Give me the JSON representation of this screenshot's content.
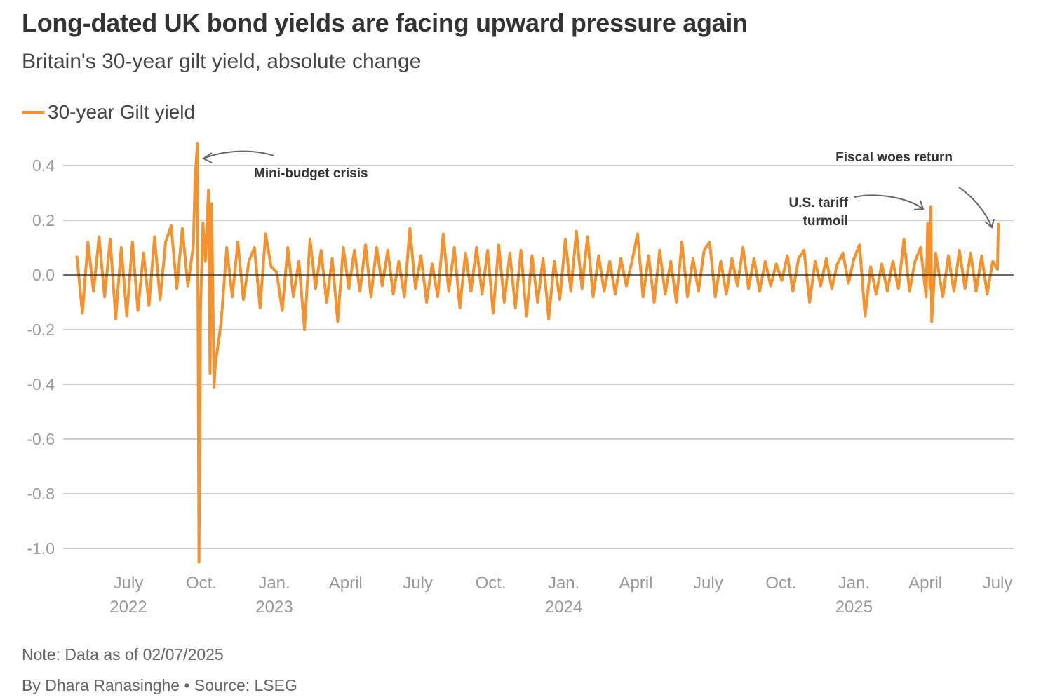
{
  "header": {
    "title": "Long-dated UK bond yields are facing upward pressure again",
    "subtitle": "Britain's 30-year gilt yield, absolute change"
  },
  "footer": {
    "note": "Note: Data as of 02/07/2025",
    "byline": "By Dhara Ranasinghe  • Source: LSEG"
  },
  "chart_data": {
    "type": "line",
    "title": "Long-dated UK bond yields are facing upward pressure again",
    "subtitle": "Britain's 30-year gilt yield, absolute change",
    "ylim": [
      -1.05,
      0.48
    ],
    "yticks": [
      0.4,
      0.2,
      0.0,
      -0.2,
      -0.4,
      -0.6,
      -0.8,
      -1.0
    ],
    "ytick_labels": [
      "0.4",
      "0.2",
      "0.0",
      "-0.2",
      "-0.4",
      "-0.6",
      "-0.8",
      "-1.0"
    ],
    "xlim": [
      "2022-04-27",
      "2025-07-02"
    ],
    "xticks": [
      {
        "date": "2022-07-01",
        "label": "July",
        "year": "2022"
      },
      {
        "date": "2022-10-01",
        "label": "Oct.",
        "year": ""
      },
      {
        "date": "2023-01-01",
        "label": "Jan.",
        "year": "2023"
      },
      {
        "date": "2023-04-01",
        "label": "April",
        "year": ""
      },
      {
        "date": "2023-07-01",
        "label": "July",
        "year": ""
      },
      {
        "date": "2023-10-01",
        "label": "Oct.",
        "year": ""
      },
      {
        "date": "2024-01-01",
        "label": "Jan.",
        "year": "2024"
      },
      {
        "date": "2024-04-01",
        "label": "April",
        "year": ""
      },
      {
        "date": "2024-07-01",
        "label": "July",
        "year": ""
      },
      {
        "date": "2024-10-01",
        "label": "Oct.",
        "year": ""
      },
      {
        "date": "2025-01-01",
        "label": "Jan.",
        "year": "2025"
      },
      {
        "date": "2025-04-01",
        "label": "April",
        "year": ""
      },
      {
        "date": "2025-07-01",
        "label": "July",
        "year": ""
      }
    ],
    "grid": true,
    "legend_placement": "top-left",
    "colors": {
      "series": "#f5922e",
      "grid": "#cccccc",
      "zero_line": "#333333",
      "annotation": "#333333",
      "arrow": "#666666"
    },
    "annotations": [
      {
        "text": "Mini-budget crisis",
        "date": "2022-09-26",
        "value": 0.48
      },
      {
        "text": "U.S. tariff",
        "text2": "turmoil",
        "date": "2025-04-08",
        "value": 0.25
      },
      {
        "text": "Fiscal woes return",
        "date": "2025-07-02",
        "value": 0.19
      }
    ],
    "series": [
      {
        "name": "30-year Gilt yield",
        "data": [
          [
            "2022-04-27",
            0.07
          ],
          [
            "2022-05-04",
            -0.14
          ],
          [
            "2022-05-11",
            0.12
          ],
          [
            "2022-05-18",
            -0.06
          ],
          [
            "2022-05-25",
            0.14
          ],
          [
            "2022-06-01",
            -0.08
          ],
          [
            "2022-06-08",
            0.13
          ],
          [
            "2022-06-15",
            -0.16
          ],
          [
            "2022-06-22",
            0.1
          ],
          [
            "2022-06-29",
            -0.15
          ],
          [
            "2022-07-06",
            0.12
          ],
          [
            "2022-07-13",
            -0.13
          ],
          [
            "2022-07-20",
            0.08
          ],
          [
            "2022-07-27",
            -0.11
          ],
          [
            "2022-08-03",
            0.14
          ],
          [
            "2022-08-10",
            -0.09
          ],
          [
            "2022-08-17",
            0.12
          ],
          [
            "2022-08-24",
            0.18
          ],
          [
            "2022-08-31",
            -0.05
          ],
          [
            "2022-09-07",
            0.17
          ],
          [
            "2022-09-14",
            -0.04
          ],
          [
            "2022-09-21",
            0.11
          ],
          [
            "2022-09-23",
            0.35
          ],
          [
            "2022-09-26",
            0.48
          ],
          [
            "2022-09-28",
            -1.05
          ],
          [
            "2022-09-30",
            -0.12
          ],
          [
            "2022-10-03",
            0.19
          ],
          [
            "2022-10-06",
            0.05
          ],
          [
            "2022-10-10",
            0.31
          ],
          [
            "2022-10-12",
            -0.36
          ],
          [
            "2022-10-14",
            0.26
          ],
          [
            "2022-10-17",
            -0.41
          ],
          [
            "2022-10-19",
            -0.31
          ],
          [
            "2022-10-21",
            -0.28
          ],
          [
            "2022-10-26",
            -0.17
          ],
          [
            "2022-11-02",
            0.1
          ],
          [
            "2022-11-09",
            -0.08
          ],
          [
            "2022-11-16",
            0.12
          ],
          [
            "2022-11-23",
            -0.09
          ],
          [
            "2022-11-30",
            0.05
          ],
          [
            "2022-12-07",
            0.1
          ],
          [
            "2022-12-14",
            -0.12
          ],
          [
            "2022-12-21",
            0.15
          ],
          [
            "2022-12-28",
            0.03
          ],
          [
            "2023-01-04",
            0.01
          ],
          [
            "2023-01-11",
            -0.13
          ],
          [
            "2023-01-18",
            0.1
          ],
          [
            "2023-01-25",
            -0.08
          ],
          [
            "2023-02-01",
            0.05
          ],
          [
            "2023-02-08",
            -0.2
          ],
          [
            "2023-02-15",
            0.13
          ],
          [
            "2023-02-22",
            -0.05
          ],
          [
            "2023-03-01",
            0.09
          ],
          [
            "2023-03-08",
            -0.1
          ],
          [
            "2023-03-15",
            0.06
          ],
          [
            "2023-03-22",
            -0.17
          ],
          [
            "2023-03-29",
            0.1
          ],
          [
            "2023-04-05",
            -0.05
          ],
          [
            "2023-04-12",
            0.09
          ],
          [
            "2023-04-19",
            -0.06
          ],
          [
            "2023-04-26",
            0.11
          ],
          [
            "2023-05-03",
            -0.08
          ],
          [
            "2023-05-10",
            0.1
          ],
          [
            "2023-05-17",
            -0.04
          ],
          [
            "2023-05-24",
            0.09
          ],
          [
            "2023-05-31",
            -0.07
          ],
          [
            "2023-06-07",
            0.05
          ],
          [
            "2023-06-14",
            -0.08
          ],
          [
            "2023-06-21",
            0.17
          ],
          [
            "2023-06-28",
            -0.05
          ],
          [
            "2023-07-05",
            0.07
          ],
          [
            "2023-07-12",
            -0.1
          ],
          [
            "2023-07-19",
            0.04
          ],
          [
            "2023-07-26",
            -0.08
          ],
          [
            "2023-08-02",
            0.15
          ],
          [
            "2023-08-09",
            -0.06
          ],
          [
            "2023-08-16",
            0.1
          ],
          [
            "2023-08-23",
            -0.12
          ],
          [
            "2023-08-30",
            0.08
          ],
          [
            "2023-09-06",
            -0.06
          ],
          [
            "2023-09-13",
            0.1
          ],
          [
            "2023-09-20",
            -0.07
          ],
          [
            "2023-09-27",
            0.09
          ],
          [
            "2023-10-04",
            -0.14
          ],
          [
            "2023-10-11",
            0.11
          ],
          [
            "2023-10-18",
            -0.1
          ],
          [
            "2023-10-25",
            0.08
          ],
          [
            "2023-11-01",
            -0.12
          ],
          [
            "2023-11-08",
            0.09
          ],
          [
            "2023-11-15",
            -0.15
          ],
          [
            "2023-11-22",
            0.07
          ],
          [
            "2023-11-29",
            -0.1
          ],
          [
            "2023-12-06",
            0.06
          ],
          [
            "2023-12-13",
            -0.16
          ],
          [
            "2023-12-20",
            0.05
          ],
          [
            "2023-12-27",
            -0.09
          ],
          [
            "2024-01-03",
            0.13
          ],
          [
            "2024-01-10",
            -0.06
          ],
          [
            "2024-01-17",
            0.16
          ],
          [
            "2024-01-24",
            -0.05
          ],
          [
            "2024-01-31",
            0.14
          ],
          [
            "2024-02-07",
            -0.08
          ],
          [
            "2024-02-14",
            0.07
          ],
          [
            "2024-02-21",
            -0.06
          ],
          [
            "2024-02-28",
            0.05
          ],
          [
            "2024-03-06",
            -0.07
          ],
          [
            "2024-03-13",
            0.06
          ],
          [
            "2024-03-20",
            -0.04
          ],
          [
            "2024-03-27",
            0.05
          ],
          [
            "2024-04-03",
            0.15
          ],
          [
            "2024-04-10",
            -0.08
          ],
          [
            "2024-04-17",
            0.07
          ],
          [
            "2024-04-24",
            -0.1
          ],
          [
            "2024-05-01",
            0.09
          ],
          [
            "2024-05-08",
            -0.07
          ],
          [
            "2024-05-15",
            0.05
          ],
          [
            "2024-05-22",
            -0.1
          ],
          [
            "2024-05-29",
            0.12
          ],
          [
            "2024-06-05",
            -0.08
          ],
          [
            "2024-06-12",
            0.06
          ],
          [
            "2024-06-19",
            -0.06
          ],
          [
            "2024-06-26",
            0.09
          ],
          [
            "2024-07-03",
            0.12
          ],
          [
            "2024-07-10",
            -0.08
          ],
          [
            "2024-07-17",
            0.05
          ],
          [
            "2024-07-24",
            -0.07
          ],
          [
            "2024-07-31",
            0.06
          ],
          [
            "2024-08-07",
            -0.04
          ],
          [
            "2024-08-14",
            0.1
          ],
          [
            "2024-08-21",
            -0.05
          ],
          [
            "2024-08-28",
            0.06
          ],
          [
            "2024-09-04",
            -0.06
          ],
          [
            "2024-09-11",
            0.05
          ],
          [
            "2024-09-18",
            -0.04
          ],
          [
            "2024-09-25",
            0.04
          ],
          [
            "2024-10-02",
            -0.02
          ],
          [
            "2024-10-09",
            0.07
          ],
          [
            "2024-10-16",
            -0.06
          ],
          [
            "2024-10-23",
            0.06
          ],
          [
            "2024-10-30",
            0.09
          ],
          [
            "2024-11-06",
            -0.1
          ],
          [
            "2024-11-13",
            0.05
          ],
          [
            "2024-11-20",
            -0.04
          ],
          [
            "2024-11-27",
            0.06
          ],
          [
            "2024-12-04",
            -0.05
          ],
          [
            "2024-12-11",
            0.04
          ],
          [
            "2024-12-18",
            0.08
          ],
          [
            "2024-12-25",
            -0.03
          ],
          [
            "2025-01-01",
            0.06
          ],
          [
            "2025-01-08",
            0.11
          ],
          [
            "2025-01-15",
            -0.15
          ],
          [
            "2025-01-22",
            0.03
          ],
          [
            "2025-01-29",
            -0.07
          ],
          [
            "2025-02-05",
            0.04
          ],
          [
            "2025-02-12",
            -0.06
          ],
          [
            "2025-02-19",
            0.05
          ],
          [
            "2025-02-26",
            -0.05
          ],
          [
            "2025-03-05",
            0.13
          ],
          [
            "2025-03-12",
            -0.06
          ],
          [
            "2025-03-19",
            0.05
          ],
          [
            "2025-03-26",
            0.1
          ],
          [
            "2025-04-02",
            -0.08
          ],
          [
            "2025-04-04",
            0.19
          ],
          [
            "2025-04-07",
            -0.05
          ],
          [
            "2025-04-08",
            0.25
          ],
          [
            "2025-04-09",
            -0.17
          ],
          [
            "2025-04-14",
            0.08
          ],
          [
            "2025-04-23",
            -0.08
          ],
          [
            "2025-04-30",
            0.07
          ],
          [
            "2025-05-07",
            -0.06
          ],
          [
            "2025-05-14",
            0.09
          ],
          [
            "2025-05-21",
            -0.05
          ],
          [
            "2025-05-28",
            0.08
          ],
          [
            "2025-06-04",
            -0.06
          ],
          [
            "2025-06-11",
            0.07
          ],
          [
            "2025-06-18",
            -0.07
          ],
          [
            "2025-06-25",
            0.05
          ],
          [
            "2025-07-01",
            0.02
          ],
          [
            "2025-07-02",
            0.19
          ]
        ]
      }
    ]
  }
}
